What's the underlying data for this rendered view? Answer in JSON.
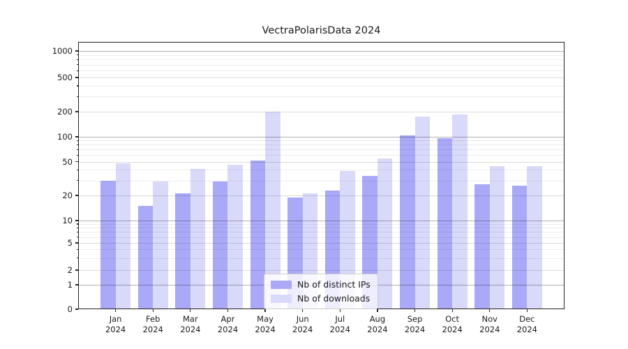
{
  "chart_data": {
    "type": "bar",
    "title": "VectraPolarisData 2024",
    "categories": [
      "Jan",
      "Feb",
      "Mar",
      "Apr",
      "May",
      "Jun",
      "Jul",
      "Aug",
      "Sep",
      "Oct",
      "Nov",
      "Dec"
    ],
    "year_label": "2024",
    "series": [
      {
        "name": "Nb of distinct IPs",
        "color": "#a9a9f7",
        "values": [
          30,
          15,
          21,
          29,
          51,
          19,
          23,
          34,
          103,
          97,
          27,
          26
        ]
      },
      {
        "name": "Nb of downloads",
        "color": "#d9d9fa",
        "values": [
          48,
          29,
          41,
          46,
          199,
          21,
          39,
          55,
          176,
          185,
          44,
          44
        ]
      }
    ],
    "y_scale": "symlog",
    "y_ticks": [
      0,
      1,
      2,
      5,
      10,
      20,
      50,
      100,
      200,
      500,
      1000
    ],
    "y_decade_ticks": [
      1,
      10,
      100,
      1000
    ],
    "y_minor_ticks": [
      3,
      4,
      6,
      7,
      8,
      9,
      30,
      40,
      60,
      70,
      80,
      90,
      300,
      400,
      600,
      700,
      800,
      900
    ],
    "ylim": [
      0,
      1200
    ],
    "xlabel": "",
    "ylabel": "",
    "grid": true,
    "legend_position": "lower-center"
  }
}
